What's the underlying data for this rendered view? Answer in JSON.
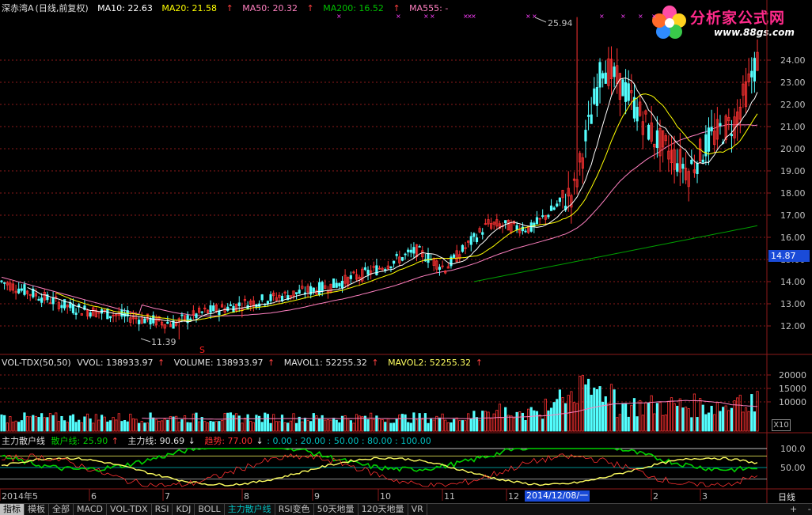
{
  "price_header": {
    "name": "深赤湾A",
    "mode": "(日线,前复权)",
    "ma10": "MA10: 22.63",
    "ma20": "MA20: 21.58",
    "ma50": "MA50: 20.32",
    "ma200": "MA200: 16.52",
    "ma555": "MA555: -",
    "arrow": "↑"
  },
  "price_axis": [
    "24.00",
    "23.00",
    "22.00",
    "21.00",
    "20.00",
    "19.00",
    "18.00",
    "17.00",
    "16.00",
    "15.00",
    "14.00",
    "13.00",
    "12.00"
  ],
  "current_price": "14.87",
  "high_label": "25.94",
  "low_label": "11.39",
  "signal_mark": "S",
  "volume_header": {
    "name": "VOL-TDX(50,50)",
    "vvol": "VVOL: 138933.97",
    "volume": "VOLUME: 138933.97",
    "mavol1": "MAVOL1: 52255.32",
    "mavol2": "MAVOL2: 52255.32",
    "arrow": "↑"
  },
  "volume_axis": [
    "20000",
    "15000",
    "10000"
  ],
  "volume_unit": "X10",
  "indicator_header": {
    "name": "主力散户线",
    "retail": "散户线: 25.90",
    "main": "主力线: 90.69",
    "trend": "趋势: 77.00",
    "levels": ": 0.00 : 20.00 : 50.00 : 80.00 : 100.00",
    "up": "↑",
    "down": "↓"
  },
  "indicator_axis": [
    "100.0",
    "50.00"
  ],
  "date_axis": [
    "2014年5",
    "6",
    "7",
    "8",
    "9",
    "10",
    "11",
    "12",
    "2",
    "3"
  ],
  "cursor_date": "2014/12/08/一",
  "period_label": "日线",
  "tabs": [
    "指标",
    "模板",
    "全部",
    "MACD",
    "VOL-TDX",
    "RSI",
    "KDJ",
    "BOLL",
    "主力散户线",
    "RSI变色",
    "50天地量",
    "120天地量",
    "VR"
  ],
  "active_tab": "主力散户线",
  "scroll_buttons": [
    "+",
    "-"
  ],
  "logo": {
    "title": "分析家公式网",
    "url": "www.88gs.com"
  },
  "colors": {
    "up_candle": "#ff3232",
    "down_candle": "#54ffff",
    "ma_white": "#ffffff",
    "ma_yellow": "#ffff00",
    "ma_pink": "#ff80c0",
    "ma_green": "#00a000",
    "grid_red": "#8b1a1a",
    "indicator_green": "#00d000",
    "indicator_yellow": "#ffff60",
    "indicator_red": "#ff3030"
  }
}
